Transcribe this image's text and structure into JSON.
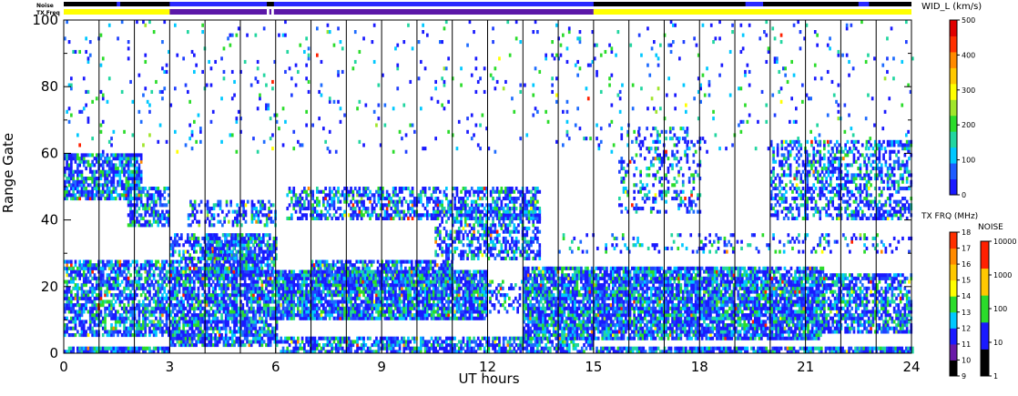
{
  "chart_data": {
    "type": "heatmap",
    "status_bars": {
      "noise_label": "Noise",
      "txfreq_label": "TX Freq",
      "noise_bar": [
        {
          "from": 0,
          "to": 24,
          "color": "#000000"
        }
      ],
      "txfreq_bar": [
        {
          "from": 0,
          "to": 3,
          "color": "#ffff00"
        },
        {
          "from": 3,
          "to": 5.75,
          "color": "#5b17a8"
        },
        {
          "from": 5.75,
          "to": 5.82,
          "color": "#ffffff"
        },
        {
          "from": 5.82,
          "to": 5.88,
          "color": "#5b17a8"
        },
        {
          "from": 5.88,
          "to": 5.95,
          "color": "#ffffff"
        },
        {
          "from": 5.95,
          "to": 15,
          "color": "#5b17a8"
        },
        {
          "from": 15,
          "to": 24,
          "color": "#ffff00"
        }
      ],
      "noise_blue_segments": [
        {
          "from": 1.5,
          "to": 1.6
        },
        {
          "from": 3,
          "to": 5.75
        },
        {
          "from": 5.95,
          "to": 15
        },
        {
          "from": 19.3,
          "to": 19.8
        },
        {
          "from": 22.5,
          "to": 22.8
        }
      ]
    },
    "xlabel": "UT hours",
    "ylabel": "Range Gate",
    "xlim": [
      0,
      24
    ],
    "ylim": [
      0,
      100
    ],
    "xticks": [
      "0",
      "3",
      "6",
      "9",
      "12",
      "15",
      "18",
      "21",
      "24"
    ],
    "xtick_values": [
      0,
      3,
      6,
      9,
      12,
      15,
      18,
      21,
      24
    ],
    "yticks": [
      "0",
      "20",
      "40",
      "60",
      "80",
      "100"
    ],
    "ytick_values": [
      0,
      20,
      40,
      60,
      80,
      100
    ],
    "hour_lines": [
      1,
      2,
      3,
      4,
      5,
      6,
      7,
      8,
      9,
      10,
      11,
      12,
      13,
      14,
      15,
      16,
      17,
      18,
      19,
      20,
      21,
      22,
      23
    ],
    "grid": false,
    "colorbars": [
      {
        "title": "WID_L (km/s)",
        "ticks": [
          "0",
          "100",
          "200",
          "300",
          "400",
          "500"
        ],
        "colors": [
          "#1a1aff",
          "#1e5cff",
          "#00c8ff",
          "#22d6a0",
          "#2bdc2b",
          "#a0e62b",
          "#ffff00",
          "#ffc800",
          "#ff8a00",
          "#ff3000",
          "#e00000"
        ]
      },
      {
        "title": "TX FRQ (MHz)",
        "ticks": [
          "9",
          "10",
          "11",
          "12",
          "13",
          "14",
          "15",
          "16",
          "17",
          "18"
        ],
        "colors": [
          "#000000",
          "#6a1aa8",
          "#1a1aff",
          "#00c8ff",
          "#2bdc2b",
          "#ffff00",
          "#ffc800",
          "#ff8a00",
          "#ff3000"
        ]
      },
      {
        "title": "NOISE",
        "ticks": [
          "1",
          "10",
          "100",
          "1000",
          "10000"
        ],
        "colors": [
          "#000000",
          "#1a1aff",
          "#2bdc2b",
          "#ffc800",
          "#ff2000"
        ]
      }
    ],
    "bands": [
      {
        "x0": 0,
        "x1": 3,
        "y0": 0,
        "y1": 1.5,
        "density": 0.85
      },
      {
        "x0": 0,
        "x1": 3,
        "y0": 5,
        "y1": 28,
        "density": 0.7
      },
      {
        "x0": 0,
        "x1": 2.2,
        "y0": 46,
        "y1": 60,
        "density": 0.75
      },
      {
        "x0": 1.8,
        "x1": 3,
        "y0": 38,
        "y1": 50,
        "density": 0.7
      },
      {
        "x0": 3,
        "x1": 6,
        "y0": 2,
        "y1": 26,
        "density": 0.8
      },
      {
        "x0": 3,
        "x1": 5.5,
        "y0": 22,
        "y1": 36,
        "density": 0.55
      },
      {
        "x0": 4,
        "x1": 6,
        "y0": 24,
        "y1": 36,
        "density": 0.6
      },
      {
        "x0": 3.5,
        "x1": 6,
        "y0": 38,
        "y1": 46,
        "density": 0.45
      },
      {
        "x0": 6,
        "x1": 12,
        "y0": 10,
        "y1": 25,
        "density": 0.85
      },
      {
        "x0": 7,
        "x1": 11,
        "y0": 20,
        "y1": 28,
        "density": 0.7
      },
      {
        "x0": 6,
        "x1": 15,
        "y0": 0,
        "y1": 5,
        "density": 0.7
      },
      {
        "x0": 6.3,
        "x1": 13.5,
        "y0": 40,
        "y1": 50,
        "density": 0.55
      },
      {
        "x0": 10.5,
        "x1": 13.5,
        "y0": 28,
        "y1": 44,
        "density": 0.5
      },
      {
        "x0": 11.5,
        "x1": 13,
        "y0": 12,
        "y1": 22,
        "density": 0.35
      },
      {
        "x0": 13,
        "x1": 21.5,
        "y0": 4,
        "y1": 26,
        "density": 0.85
      },
      {
        "x0": 15,
        "x1": 24,
        "y0": 0,
        "y1": 2,
        "density": 0.85
      },
      {
        "x0": 21.5,
        "x1": 24,
        "y0": 6,
        "y1": 24,
        "density": 0.7
      },
      {
        "x0": 15.7,
        "x1": 18,
        "y0": 42,
        "y1": 68,
        "density": 0.25
      },
      {
        "x0": 20,
        "x1": 24,
        "y0": 40,
        "y1": 64,
        "density": 0.45
      },
      {
        "x0": 14,
        "x1": 24,
        "y0": 30,
        "y1": 36,
        "density": 0.2
      },
      {
        "x0": 0,
        "x1": 24,
        "y0": 60,
        "y1": 100,
        "density": 0.04
      }
    ]
  }
}
